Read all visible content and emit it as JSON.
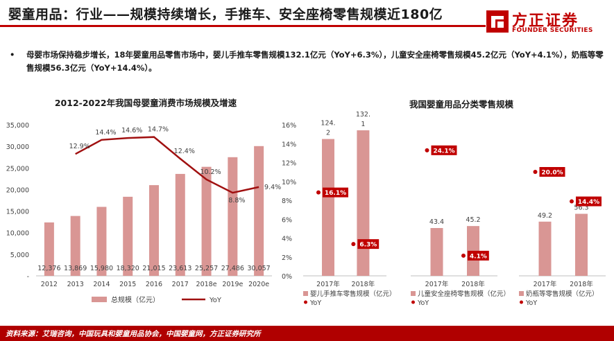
{
  "header": {
    "title": "婴童用品：行业——规模持续增长，手推车、安全座椅零售规模近180亿",
    "logo_cn": "方正证券",
    "logo_en": "FOUNDER SECURITIES"
  },
  "bullet": {
    "marker": "•",
    "text": "母婴市场保持稳步增长，18年婴童用品零售市场中，婴儿手推车零售规模132.1亿元（YoY+6.3%），儿童安全座椅零售规模45.2亿元（YoY+4.1%），奶瓶等零售规模56.3亿元（YoY+14.4%）。"
  },
  "footer": {
    "text": "资料来源：艾瑞咨询，中国玩具和婴童用品协会，中国婴童网，方正证券研究所"
  },
  "colors": {
    "bar": "#d99694",
    "line": "#a01010",
    "point": "#c00000",
    "label_box": "#c00000",
    "accent": "#c00000"
  },
  "chart_data": [
    {
      "type": "bar+line",
      "title": "2012-2022年我国母婴童消费市场规模及增速",
      "categories": [
        "2012",
        "2013",
        "2014",
        "2015",
        "2016",
        "2017",
        "2018e",
        "2019e",
        "2020e"
      ],
      "series": [
        {
          "name": "总规模（亿元）",
          "type": "bar",
          "axis": "left",
          "values": [
            12376,
            13869,
            15980,
            18320,
            21015,
            23613,
            25257,
            27486,
            30057
          ],
          "labels": [
            "12,376",
            "13,869",
            "15,980",
            "18,320",
            "21,015",
            "23,613",
            "25,257",
            "27,486",
            "30,057"
          ]
        },
        {
          "name": "YoY",
          "type": "line",
          "axis": "right",
          "values": [
            null,
            12.9,
            14.4,
            14.6,
            14.7,
            12.4,
            10.2,
            8.8,
            9.4
          ],
          "labels": [
            "",
            "12.9%",
            "14.4%",
            "14.6%",
            "14.7%",
            "12.4%",
            "10.2%",
            "8.8%",
            "9.4%"
          ]
        }
      ],
      "y_left": {
        "lim": [
          0,
          35000
        ],
        "ticks": [
          0,
          5000,
          10000,
          15000,
          20000,
          25000,
          30000,
          35000
        ],
        "tick_labels": [
          "-",
          "5,000",
          "10,000",
          "15,000",
          "20,000",
          "25,000",
          "30,000",
          "35,000"
        ]
      },
      "y_right": {
        "lim": [
          0,
          16
        ],
        "ticks": [
          0,
          2,
          4,
          6,
          8,
          10,
          12,
          14,
          16
        ],
        "tick_labels": [
          "0%",
          "2%",
          "4%",
          "6%",
          "8%",
          "10%",
          "12%",
          "14%",
          "16%"
        ]
      },
      "grid": false,
      "legend": "bottom"
    },
    {
      "type": "bar+scatter",
      "title": "我国婴童用品分类零售规模",
      "groups": [
        {
          "categories": [
            "2017年",
            "2018年"
          ],
          "bar_name": "婴儿手推车零售规模（亿元）",
          "bar_values": [
            124.2,
            132.1
          ],
          "bar_labels": [
            "124.\n2",
            "132.\n1"
          ],
          "yoy_name": "YoY",
          "yoy_values": [
            16.1,
            6.3
          ],
          "yoy_labels": [
            "16.1%",
            "6.3%"
          ]
        },
        {
          "categories": [
            "2017年",
            "2018年"
          ],
          "bar_name": "儿童安全座椅零售规模（亿元）",
          "bar_values": [
            43.4,
            45.2
          ],
          "bar_labels": [
            "43.4",
            "45.2"
          ],
          "yoy_name": "YoY",
          "yoy_values": [
            24.1,
            4.1
          ],
          "yoy_labels": [
            "24.1%",
            "4.1%"
          ]
        },
        {
          "categories": [
            "2017年",
            "2018年"
          ],
          "bar_name": "奶瓶等零售规模（亿元）",
          "bar_values": [
            49.2,
            56.3
          ],
          "bar_labels": [
            "49.2",
            "56.3"
          ],
          "yoy_name": "YoY",
          "yoy_values": [
            20.0,
            14.4
          ],
          "yoy_labels": [
            "20.0%",
            "14.4%"
          ]
        }
      ],
      "grid": false,
      "legend": "bottom"
    }
  ]
}
